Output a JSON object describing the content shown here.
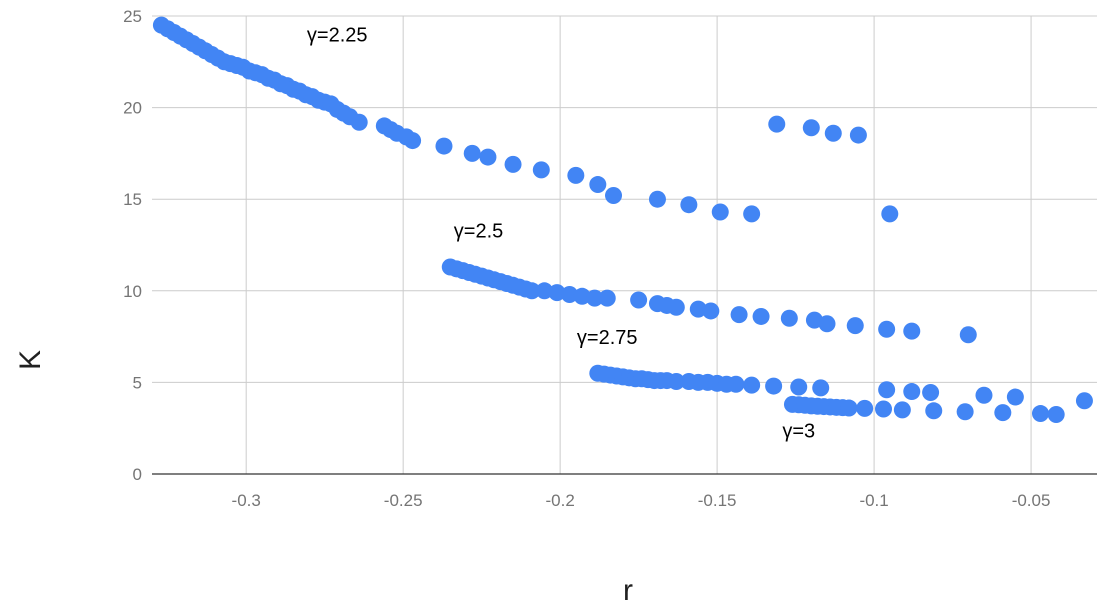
{
  "chart_data": {
    "type": "scatter",
    "title": "",
    "xlabel": "r",
    "ylabel": "K",
    "xlim": [
      -0.33,
      -0.029
    ],
    "ylim": [
      0,
      25
    ],
    "x_ticks": [
      -0.3,
      -0.25,
      -0.2,
      -0.15,
      -0.1,
      -0.05
    ],
    "x_tick_labels": [
      "-0.3",
      "-0.25",
      "-0.2",
      "-0.15",
      "-0.1",
      "-0.05"
    ],
    "y_ticks": [
      0,
      5,
      10,
      15,
      20,
      25
    ],
    "y_tick_labels": [
      "0",
      "5",
      "10",
      "15",
      "20",
      "25"
    ],
    "grid": true,
    "legend": "none",
    "color": "#4285f4",
    "annotations": [
      {
        "text": "γ=2.25",
        "x": -0.271,
        "y": 23.6
      },
      {
        "text": "γ=2.5",
        "x": -0.226,
        "y": 12.9
      },
      {
        "text": "γ=2.75",
        "x": -0.185,
        "y": 7.1
      },
      {
        "text": "γ=3",
        "x": -0.124,
        "y": 2.0
      }
    ],
    "series": [
      {
        "label_text": "γ=2.25",
        "x": [
          -0.327,
          -0.325,
          -0.323,
          -0.321,
          -0.319,
          -0.317,
          -0.315,
          -0.313,
          -0.311,
          -0.309,
          -0.307,
          -0.305,
          -0.303,
          -0.301,
          -0.299,
          -0.297,
          -0.295,
          -0.293,
          -0.291,
          -0.289,
          -0.287,
          -0.285,
          -0.283,
          -0.281,
          -0.279,
          -0.277,
          -0.275,
          -0.273,
          -0.271,
          -0.269,
          -0.267,
          -0.264,
          -0.256,
          -0.254,
          -0.252,
          -0.249,
          -0.247,
          -0.237,
          -0.228,
          -0.223,
          -0.215,
          -0.206,
          -0.195,
          -0.188,
          -0.183,
          -0.169,
          -0.159,
          -0.149,
          -0.139,
          -0.131,
          -0.12,
          -0.113,
          -0.105,
          -0.095
        ],
        "y": [
          24.5,
          24.3,
          24.1,
          23.9,
          23.7,
          23.5,
          23.3,
          23.1,
          22.9,
          22.7,
          22.5,
          22.4,
          22.3,
          22.2,
          22.0,
          21.9,
          21.8,
          21.6,
          21.5,
          21.3,
          21.2,
          21.0,
          20.9,
          20.7,
          20.6,
          20.4,
          20.3,
          20.2,
          19.9,
          19.7,
          19.5,
          19.2,
          19.0,
          18.8,
          18.6,
          18.4,
          18.2,
          17.9,
          17.5,
          17.3,
          16.9,
          16.6,
          16.3,
          15.8,
          15.2,
          15.0,
          14.7,
          14.3,
          14.2,
          19.1,
          18.9,
          18.6,
          18.5,
          14.2
        ]
      },
      {
        "label_text": "γ=2.5",
        "x": [
          -0.235,
          -0.233,
          -0.231,
          -0.229,
          -0.227,
          -0.225,
          -0.223,
          -0.221,
          -0.219,
          -0.217,
          -0.215,
          -0.213,
          -0.211,
          -0.209,
          -0.205,
          -0.201,
          -0.197,
          -0.193,
          -0.189,
          -0.185,
          -0.175,
          -0.169,
          -0.166,
          -0.163,
          -0.156,
          -0.152,
          -0.143,
          -0.136,
          -0.127,
          -0.119,
          -0.115,
          -0.106,
          -0.096,
          -0.088,
          -0.07
        ],
        "y": [
          11.3,
          11.2,
          11.1,
          11.0,
          10.9,
          10.8,
          10.7,
          10.6,
          10.5,
          10.4,
          10.3,
          10.2,
          10.1,
          10.0,
          10.0,
          9.9,
          9.8,
          9.7,
          9.6,
          9.6,
          9.5,
          9.3,
          9.2,
          9.1,
          9.0,
          8.9,
          8.7,
          8.6,
          8.5,
          8.4,
          8.2,
          8.1,
          7.9,
          7.8,
          7.6
        ]
      },
      {
        "label_text": "γ=2.75",
        "x": [
          -0.188,
          -0.186,
          -0.184,
          -0.182,
          -0.18,
          -0.178,
          -0.176,
          -0.174,
          -0.172,
          -0.17,
          -0.168,
          -0.166,
          -0.163,
          -0.159,
          -0.156,
          -0.153,
          -0.15,
          -0.147,
          -0.144,
          -0.139,
          -0.132,
          -0.124,
          -0.117,
          -0.096,
          -0.088,
          -0.082,
          -0.065,
          -0.055,
          -0.033
        ],
        "y": [
          5.5,
          5.45,
          5.4,
          5.35,
          5.3,
          5.25,
          5.2,
          5.2,
          5.15,
          5.1,
          5.1,
          5.1,
          5.05,
          5.05,
          5.0,
          5.0,
          4.95,
          4.9,
          4.9,
          4.85,
          4.8,
          4.75,
          4.7,
          4.6,
          4.5,
          4.45,
          4.3,
          4.2,
          4.0
        ]
      },
      {
        "label_text": "γ=3",
        "x": [
          -0.126,
          -0.124,
          -0.122,
          -0.12,
          -0.118,
          -0.116,
          -0.114,
          -0.112,
          -0.11,
          -0.108,
          -0.103,
          -0.097,
          -0.091,
          -0.081,
          -0.071,
          -0.059,
          -0.047,
          -0.042
        ],
        "y": [
          3.8,
          3.78,
          3.75,
          3.72,
          3.7,
          3.68,
          3.66,
          3.64,
          3.62,
          3.6,
          3.58,
          3.55,
          3.5,
          3.45,
          3.4,
          3.35,
          3.3,
          3.25
        ]
      }
    ]
  }
}
